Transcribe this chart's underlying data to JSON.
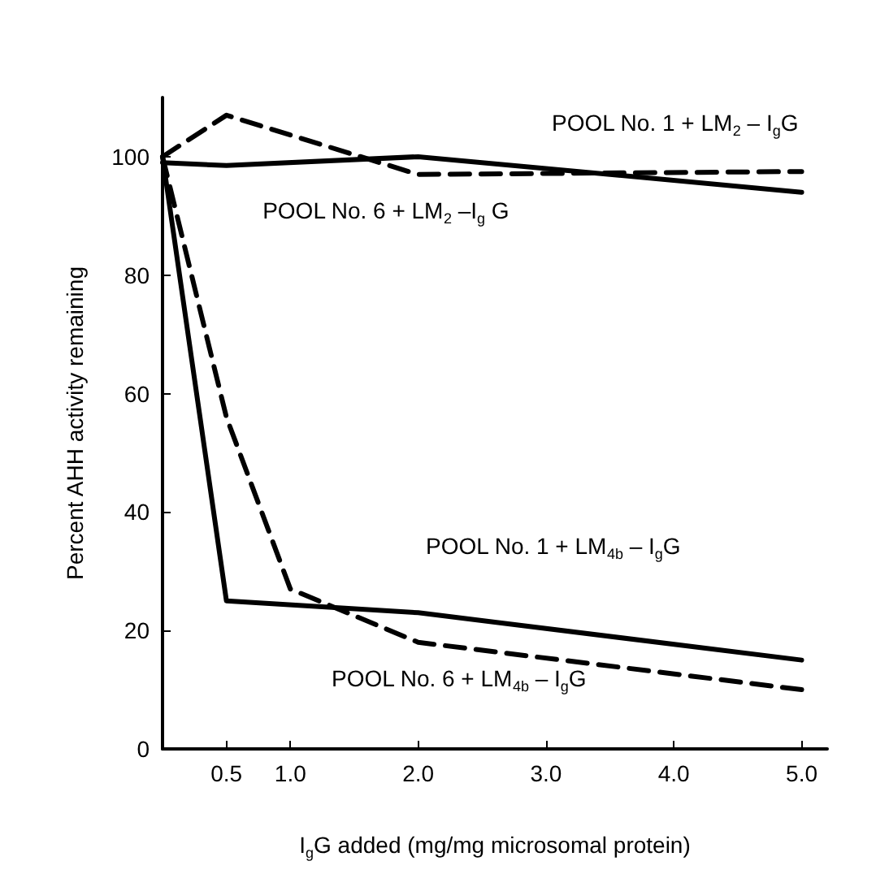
{
  "chart_data": {
    "type": "line",
    "xlabel": "I$_{g}$G added (mg/mg microsomal protein)",
    "ylabel": "Percent AHH activity remaining",
    "xlim": [
      0,
      5.2
    ],
    "xticks": [
      0.5,
      {
        "value": 1,
        "label": "1.0"
      },
      {
        "value": 2,
        "label": "2.0"
      },
      {
        "value": 3,
        "label": "3.0"
      },
      {
        "value": 4,
        "label": "4.0"
      },
      {
        "value": 5,
        "label": "5.0"
      }
    ],
    "ylim": [
      0,
      110
    ],
    "yticks": [
      0,
      20,
      40,
      60,
      80,
      100
    ],
    "grid": false,
    "marker": "none",
    "series": [
      {
        "name": "POOL No. 1 + LM$_{2}$ – I$_{g}$G",
        "color": "#000000",
        "line_style": "solid",
        "x": [
          0,
          0.5,
          2.0,
          5.0
        ],
        "values": [
          99,
          98.5,
          100,
          94
        ]
      },
      {
        "name": "POOL No. 6 + LM$_{2}$ –I$_{g}$ G",
        "color": "#000000",
        "line_style": "dashed",
        "x": [
          0,
          0.5,
          2.0,
          5.0
        ],
        "values": [
          100,
          107,
          97,
          97.5
        ]
      },
      {
        "name": "POOL No. 1 + LM$_{4b}$ – I$_{g}$G",
        "color": "#000000",
        "line_style": "solid",
        "x": [
          0,
          0.5,
          2.0,
          5.0
        ],
        "values": [
          100,
          25,
          23,
          15
        ]
      },
      {
        "name": "POOL No. 6 + LM$_{4b}$ – I$_{g}$G",
        "color": "#000000",
        "line_style": "dashed",
        "x": [
          0,
          0.5,
          1.0,
          2.0,
          5.0
        ],
        "values": [
          100,
          56,
          27,
          18,
          10
        ]
      }
    ]
  }
}
